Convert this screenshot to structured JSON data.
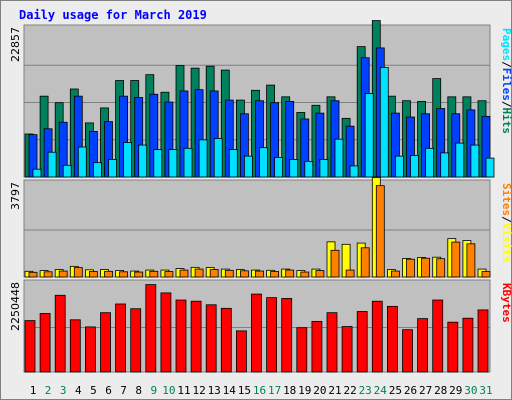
{
  "chart_data": {
    "type": "bar",
    "title": "Daily usage for March 2019",
    "categories": [
      "1",
      "2",
      "3",
      "4",
      "5",
      "6",
      "7",
      "8",
      "9",
      "10",
      "11",
      "12",
      "13",
      "14",
      "15",
      "16",
      "17",
      "18",
      "19",
      "20",
      "21",
      "22",
      "23",
      "24",
      "25",
      "26",
      "27",
      "28",
      "29",
      "30",
      "31"
    ],
    "weekend_days": [
      "2",
      "3",
      "9",
      "10",
      "16",
      "17",
      "23",
      "24",
      "30",
      "31"
    ],
    "panels": [
      {
        "id": "traffic",
        "axis_label": "22857",
        "ymax": 22857,
        "legend": [
          "Pages",
          "/",
          "Files",
          "/",
          "Hits"
        ],
        "series": [
          {
            "name": "Hits",
            "color": "#00805c",
            "values": [
              6600,
              12400,
              11400,
              13500,
              8300,
              10600,
              14800,
              14800,
              15700,
              13000,
              17100,
              16700,
              17000,
              16400,
              11800,
              13300,
              14100,
              12300,
              9900,
              11000,
              12300,
              9000,
              20000,
              24000,
              12400,
              11700,
              11600,
              15100,
              12300,
              12300,
              11700
            ]
          },
          {
            "name": "Files",
            "color": "#0040ff",
            "values": [
              6500,
              7400,
              8400,
              12400,
              7000,
              8500,
              12400,
              12200,
              12700,
              11500,
              13200,
              13400,
              13200,
              11800,
              9700,
              11700,
              11400,
              11600,
              8900,
              9800,
              11700,
              7800,
              18300,
              19800,
              9800,
              9200,
              9700,
              10500,
              9700,
              10300,
              9300
            ]
          },
          {
            "name": "Pages",
            "color": "#00e0ff",
            "values": [
              1200,
              3800,
              1800,
              4600,
              2200,
              2700,
              5300,
              4900,
              4200,
              4200,
              4400,
              5700,
              5900,
              4200,
              3200,
              4500,
              3000,
              2700,
              2400,
              2700,
              5800,
              1700,
              12800,
              16800,
              3200,
              3300,
              4400,
              3700,
              5200,
              4900,
              2900
            ]
          }
        ]
      },
      {
        "id": "visits",
        "axis_label": "3797",
        "ymax": 3797,
        "legend": [
          "Sites",
          "/",
          "Visits"
        ],
        "series": [
          {
            "name": "Visits",
            "color": "#ffff00",
            "values": [
              230,
              260,
              300,
              430,
              290,
              300,
              260,
              240,
              280,
              280,
              340,
              390,
              380,
              320,
              300,
              280,
              270,
              320,
              260,
              320,
              1420,
              1320,
              1370,
              4020,
              300,
              750,
              790,
              800,
              1550,
              1470,
              320
            ]
          },
          {
            "name": "Sites",
            "color": "#ff8000",
            "values": [
              190,
              210,
              240,
              380,
              220,
              230,
              210,
              200,
              230,
              220,
              280,
              320,
              300,
              270,
              250,
              240,
              220,
              280,
              200,
              260,
              1080,
              280,
              1180,
              3690,
              240,
              720,
              760,
              740,
              1410,
              1340,
              220
            ]
          }
        ]
      },
      {
        "id": "kbytes",
        "axis_label": "2250448",
        "ymax": 2250448,
        "legend": [
          "KBytes"
        ],
        "series": [
          {
            "name": "KBytes",
            "color": "#ff0000",
            "values": [
              1300000,
              1480000,
              1940000,
              1320000,
              1140000,
              1500000,
              1720000,
              1600000,
              2210000,
              2000000,
              1820000,
              1790000,
              1700000,
              1610000,
              1040000,
              1970000,
              1880000,
              1860000,
              1120000,
              1280000,
              1500000,
              1150000,
              1530000,
              1790000,
              1660000,
              1070000,
              1350000,
              1820000,
              1260000,
              1360000,
              1570000
            ]
          }
        ]
      }
    ]
  },
  "colors": {
    "background": "#ececec",
    "plot_background": "#c0c0c0",
    "title": "#0000ff",
    "axis_label": "#000000",
    "weekday": "#000000",
    "weekend": "#00805c",
    "gridline": "#808080"
  }
}
